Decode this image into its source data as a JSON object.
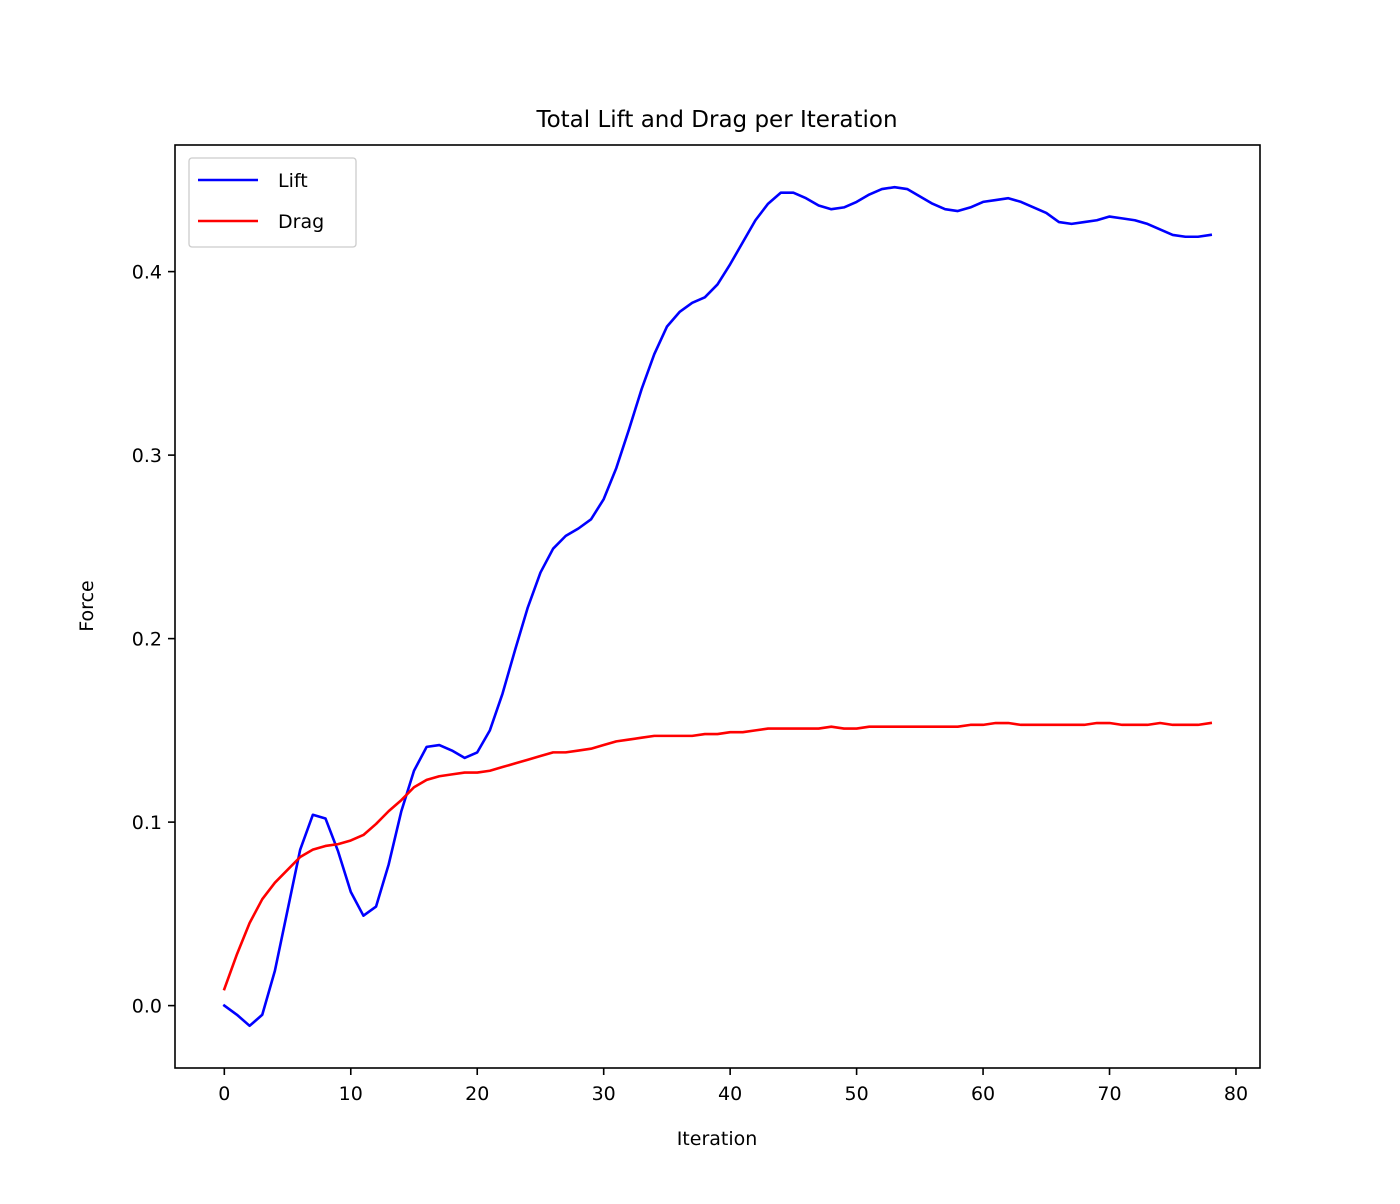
{
  "chart_data": {
    "type": "line",
    "title": "Total Lift and Drag per Iteration",
    "xlabel": "Iteration",
    "ylabel": "Force",
    "xlim": [
      -3.9,
      81.9
    ],
    "ylim": [
      -0.034,
      0.469
    ],
    "xticks": [
      0,
      10,
      20,
      30,
      40,
      50,
      60,
      70,
      80
    ],
    "xtick_labels": [
      "0",
      "10",
      "20",
      "30",
      "40",
      "50",
      "60",
      "70",
      "80"
    ],
    "yticks": [
      0.0,
      0.1,
      0.2,
      0.3,
      0.4
    ],
    "ytick_labels": [
      "0.0",
      "0.1",
      "0.2",
      "0.3",
      "0.4"
    ],
    "grid": false,
    "legend_position": "upper left",
    "x": [
      0,
      1,
      2,
      3,
      4,
      5,
      6,
      7,
      8,
      9,
      10,
      11,
      12,
      13,
      14,
      15,
      16,
      17,
      18,
      19,
      20,
      21,
      22,
      23,
      24,
      25,
      26,
      27,
      28,
      29,
      30,
      31,
      32,
      33,
      34,
      35,
      36,
      37,
      38,
      39,
      40,
      41,
      42,
      43,
      44,
      45,
      46,
      47,
      48,
      49,
      50,
      51,
      52,
      53,
      54,
      55,
      56,
      57,
      58,
      59,
      60,
      61,
      62,
      63,
      64,
      65,
      66,
      67,
      68,
      69,
      70,
      71,
      72,
      73,
      74,
      75,
      76,
      77,
      78
    ],
    "series": [
      {
        "name": "Lift",
        "color": "#0000ff",
        "values": [
          0.0,
          -0.005,
          -0.011,
          -0.005,
          0.019,
          0.052,
          0.085,
          0.104,
          0.102,
          0.084,
          0.062,
          0.049,
          0.054,
          0.077,
          0.106,
          0.128,
          0.141,
          0.142,
          0.139,
          0.135,
          0.138,
          0.15,
          0.17,
          0.194,
          0.217,
          0.236,
          0.249,
          0.256,
          0.26,
          0.265,
          0.276,
          0.293,
          0.314,
          0.336,
          0.355,
          0.37,
          0.378,
          0.383,
          0.386,
          0.393,
          0.404,
          0.416,
          0.428,
          0.437,
          0.443,
          0.443,
          0.44,
          0.436,
          0.434,
          0.435,
          0.438,
          0.442,
          0.445,
          0.446,
          0.445,
          0.441,
          0.437,
          0.434,
          0.433,
          0.435,
          0.438,
          0.439,
          0.44,
          0.438,
          0.435,
          0.432,
          0.427,
          0.426,
          0.427,
          0.428,
          0.43,
          0.429,
          0.428,
          0.426,
          0.423,
          0.42,
          0.419,
          0.419,
          0.42
        ]
      },
      {
        "name": "Drag",
        "color": "#ff0000",
        "values": [
          0.009,
          0.028,
          0.045,
          0.058,
          0.067,
          0.074,
          0.081,
          0.085,
          0.087,
          0.088,
          0.09,
          0.093,
          0.099,
          0.106,
          0.112,
          0.119,
          0.123,
          0.125,
          0.126,
          0.127,
          0.127,
          0.128,
          0.13,
          0.132,
          0.134,
          0.136,
          0.138,
          0.138,
          0.139,
          0.14,
          0.142,
          0.144,
          0.145,
          0.146,
          0.147,
          0.147,
          0.147,
          0.147,
          0.148,
          0.148,
          0.149,
          0.149,
          0.15,
          0.151,
          0.151,
          0.151,
          0.151,
          0.151,
          0.152,
          0.151,
          0.151,
          0.152,
          0.152,
          0.152,
          0.152,
          0.152,
          0.152,
          0.152,
          0.152,
          0.153,
          0.153,
          0.154,
          0.154,
          0.153,
          0.153,
          0.153,
          0.153,
          0.153,
          0.153,
          0.154,
          0.154,
          0.153,
          0.153,
          0.153,
          0.154,
          0.153,
          0.153,
          0.153,
          0.154
        ]
      }
    ]
  }
}
